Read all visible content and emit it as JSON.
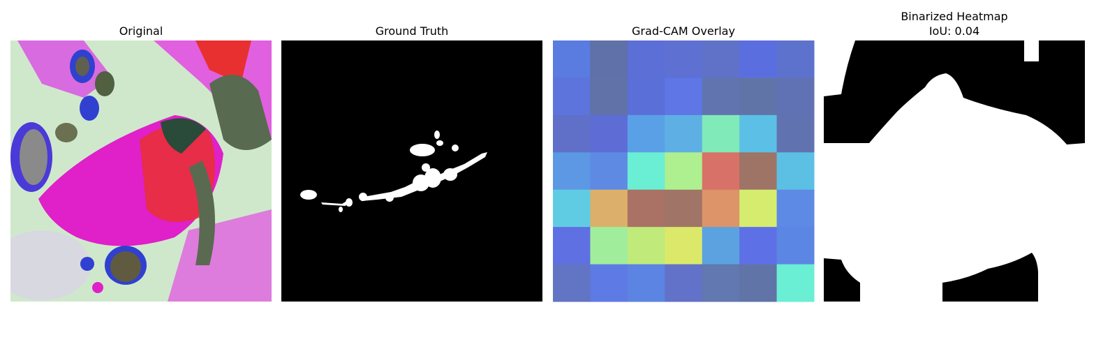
{
  "panels": [
    {
      "title": "Original"
    },
    {
      "title": "Ground Truth"
    },
    {
      "title": "Grad-CAM Overlay"
    },
    {
      "title": "Binarized Heatmap",
      "subtitle": "IoU: 0.04"
    }
  ]
}
